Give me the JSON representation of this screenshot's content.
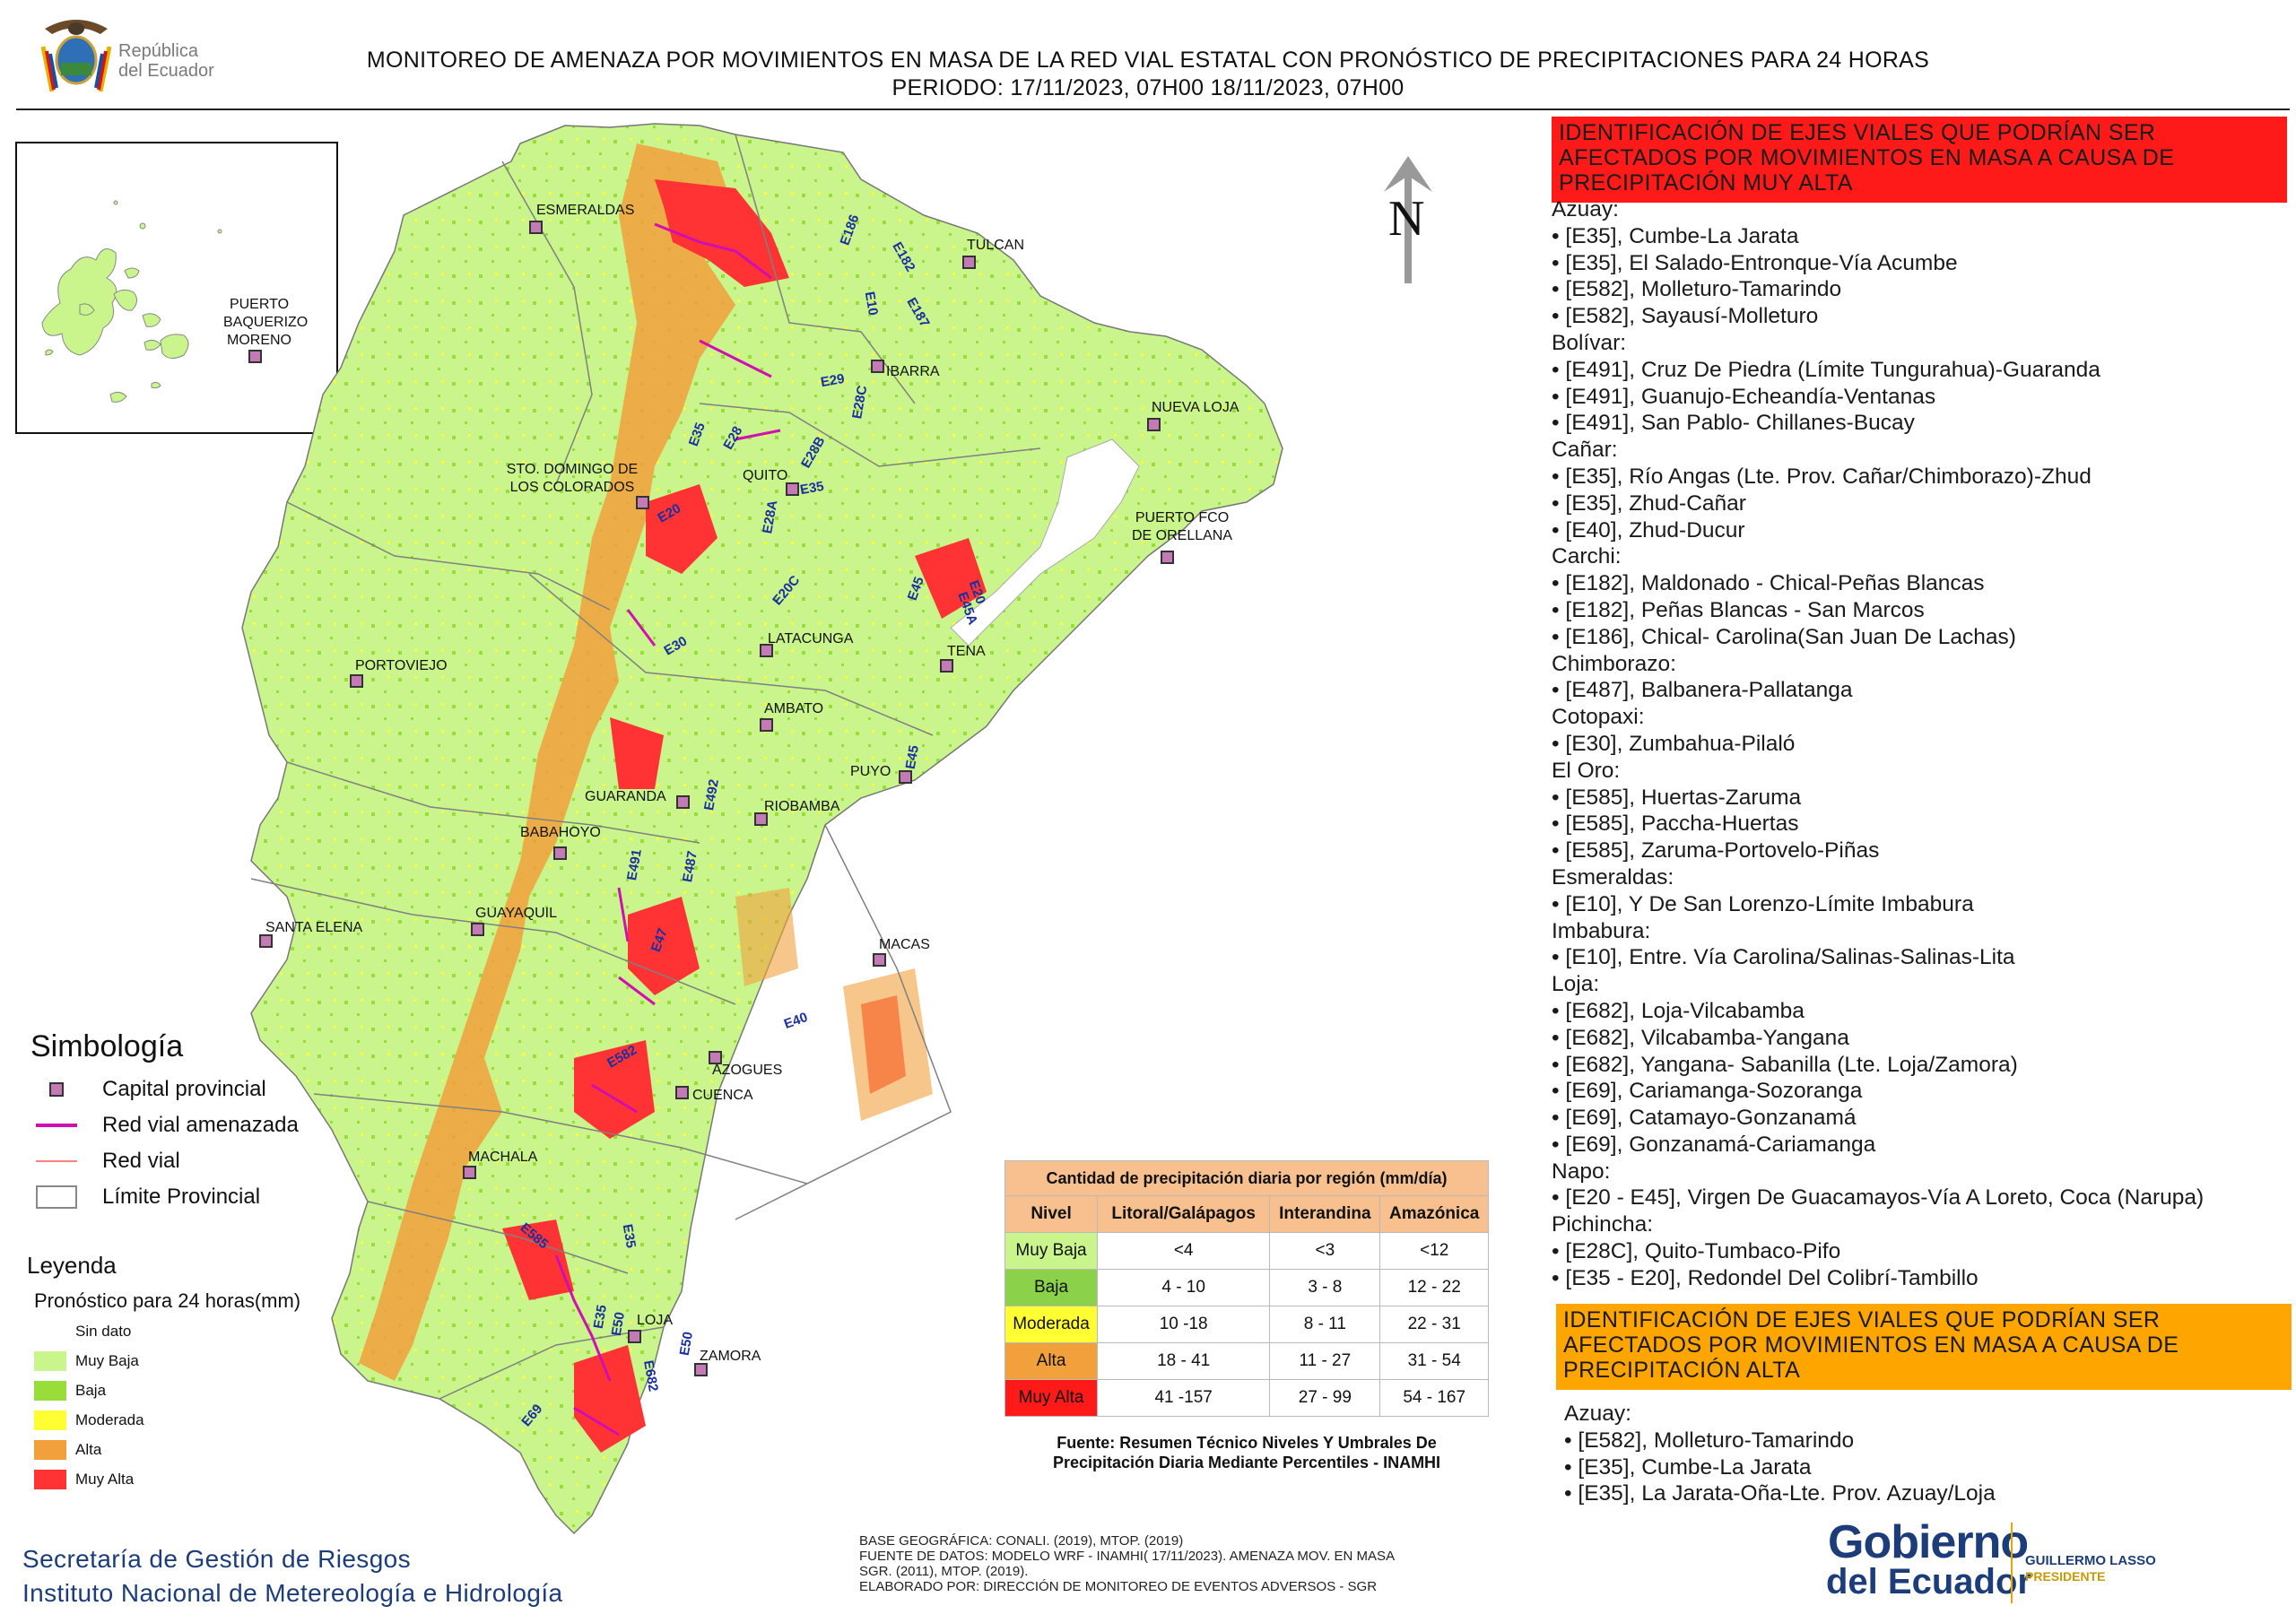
{
  "header": {
    "title_line1": "MONITOREO DE AMENAZA POR MOVIMIENTOS EN MASA DE LA RED VIAL  ESTATAL  CON PRONÓSTICO  DE  PRECIPITACIONES PARA 24 HORAS",
    "title_line2": "PERIODO: 17/11/2023, 07H00 18/11/2023, 07H00",
    "logo_text_line1": "República",
    "logo_text_line2": "del Ecuador"
  },
  "map": {
    "cities": [
      {
        "name": "ESMERALDAS",
        "label": "ESMERALDAS"
      },
      {
        "name": "TULCAN",
        "label": "TULCAN"
      },
      {
        "name": "IBARRA",
        "label": "IBARRA"
      },
      {
        "name": "NUEVA LOJA",
        "label": "NUEVA LOJA"
      },
      {
        "name": "STO. DOMINGO DE LOS COLORADOS",
        "label": "STO. DOMINGO DE LOS COLORADOS"
      },
      {
        "name": "QUITO",
        "label": "QUITO"
      },
      {
        "name": "PUERTO FCO DE ORELLANA",
        "label": "PUERTO FCO DE ORELLANA"
      },
      {
        "name": "LATACUNGA",
        "label": "LATACUNGA"
      },
      {
        "name": "TENA",
        "label": "TENA"
      },
      {
        "name": "PORTOVIEJO",
        "label": "PORTOVIEJO"
      },
      {
        "name": "AMBATO",
        "label": "AMBATO"
      },
      {
        "name": "PUYO",
        "label": "PUYO"
      },
      {
        "name": "GUARANDA",
        "label": "GUARANDA"
      },
      {
        "name": "RIOBAMBA",
        "label": "RIOBAMBA"
      },
      {
        "name": "BABAHOYO",
        "label": "BABAHOYO"
      },
      {
        "name": "SANTA ELENA",
        "label": "SANTA ELENA"
      },
      {
        "name": "GUAYAQUIL",
        "label": "GUAYAQUIL"
      },
      {
        "name": "MACAS",
        "label": "MACAS"
      },
      {
        "name": "AZOGUES",
        "label": "AZOGUES"
      },
      {
        "name": "CUENCA",
        "label": "CUENCA"
      },
      {
        "name": "MACHALA",
        "label": "MACHALA"
      },
      {
        "name": "LOJA",
        "label": "LOJA"
      },
      {
        "name": "ZAMORA",
        "label": "ZAMORA"
      },
      {
        "name": "PUERTO BAQUERIZO MORENO",
        "label": "PUERTO BAQUERIZO MORENO"
      }
    ],
    "road_labels": [
      "E186",
      "E182",
      "E10",
      "E187",
      "E29",
      "E35",
      "E28",
      "E28B",
      "E28C",
      "E35",
      "E20",
      "E28A",
      "E20C",
      "E45",
      "E20",
      "E45A",
      "E30",
      "E45",
      "E492",
      "E491",
      "E487",
      "E47",
      "E40",
      "E582",
      "E35",
      "E35",
      "E50",
      "E585",
      "E69",
      "E682",
      "E50"
    ],
    "north_label": "N",
    "colors": {
      "muy_baja": "#c9f58c",
      "baja": "#99dd3a",
      "moderada": "#ffff33",
      "alta": "#f2a03c",
      "muy_alta": "#ff3333",
      "sin_dato": "#ffffff",
      "road_threatened": "#d10fb0",
      "road": "#ff8080"
    }
  },
  "simbologia": {
    "title": "Simbología",
    "items": [
      "Capital provincial",
      "Red vial amenazada",
      "Red vial",
      "Límite Provincial"
    ]
  },
  "leyenda": {
    "title": "Leyenda",
    "subtitle": "Pronóstico para 24 horas(mm)",
    "items": [
      "Sin dato",
      "Muy Baja",
      "Baja",
      "Moderada",
      "Alta",
      "Muy Alta"
    ]
  },
  "precip_table": {
    "title": "Cantidad de precipitación diaria por región (mm/día)",
    "headers": [
      "Nivel",
      "Litoral/Galápagos",
      "Interandina",
      "Amazónica"
    ],
    "rows": [
      {
        "nivel": "Muy Baja",
        "litoral": "<4",
        "interandina": "<3",
        "amazonica": "<12"
      },
      {
        "nivel": "Baja",
        "litoral": "4 - 10",
        "interandina": "3 - 8",
        "amazonica": "12 - 22"
      },
      {
        "nivel": "Moderada",
        "litoral": "10 -18",
        "interandina": "8 - 11",
        "amazonica": "22 - 31"
      },
      {
        "nivel": "Alta",
        "litoral": "18 - 41",
        "interandina": "11 - 27",
        "amazonica": "31 - 54"
      },
      {
        "nivel": "Muy Alta",
        "litoral": "41 -157",
        "interandina": "27 - 99",
        "amazonica": "54 - 167"
      }
    ],
    "caption_line1": "Fuente: Resumen Técnico Niveles Y Umbrales De",
    "caption_line2": "Precipitación Diaria Mediante Percentiles - INAMHI"
  },
  "alerts": {
    "muy_alta_header": "IDENTIFICACIÓN DE EJES VIALES QUE PODRÍAN SER AFECTADOS POR MOVIMIENTOS EN MASA A CAUSA DE PRECIPITACIÓN MUY ALTA",
    "muy_alta_list": [
      "Azuay:",
      "• [E35], Cumbe-La Jarata",
      "• [E35], El Salado-Entronque-Vía Acumbe",
      "• [E582], Molleturo-Tamarindo",
      "• [E582], Sayausí-Molleturo",
      "Bolívar:",
      "• [E491], Cruz De Piedra (Límite Tungurahua)-Guaranda",
      "• [E491], Guanujo-Echeandía-Ventanas",
      "• [E491], San Pablo- Chillanes-Bucay",
      "Cañar:",
      "• [E35], Río Angas (Lte. Prov. Cañar/Chimborazo)-Zhud",
      "• [E35], Zhud-Cañar",
      "• [E40], Zhud-Ducur",
      "Carchi:",
      "• [E182], Maldonado - Chical-Peñas Blancas",
      "• [E182], Peñas Blancas - San Marcos",
      "• [E186], Chical- Carolina(San Juan De Lachas)",
      "Chimborazo:",
      "• [E487], Balbanera-Pallatanga",
      "Cotopaxi:",
      "• [E30], Zumbahua-Pilaló",
      "El Oro:",
      "• [E585], Huertas-Zaruma",
      "• [E585], Paccha-Huertas",
      "• [E585], Zaruma-Portovelo-Piñas",
      "Esmeraldas:",
      "• [E10], Y De San Lorenzo-Límite Imbabura",
      "Imbabura:",
      "• [E10], Entre. Vía Carolina/Salinas-Salinas-Lita",
      "Loja:",
      "• [E682], Loja-Vilcabamba",
      "• [E682], Vilcabamba-Yangana",
      "• [E682], Yangana- Sabanilla (Lte. Loja/Zamora)",
      "• [E69], Cariamanga-Sozoranga",
      "• [E69], Catamayo-Gonzanamá",
      "• [E69], Gonzanamá-Cariamanga",
      "Napo:",
      "• [E20 - E45], Virgen De Guacamayos-Vía A Loreto, Coca (Narupa)",
      "Pichincha:",
      "• [E28C], Quito-Tumbaco-Pifo",
      "• [E35 - E20], Redondel Del Colibrí-Tambillo"
    ],
    "alta_header": "IDENTIFICACIÓN DE EJES VIALES QUE PODRÍAN SER AFECTADOS POR MOVIMIENTOS EN MASA A CAUSA DE PRECIPITACIÓN  ALTA",
    "alta_list": [
      "Azuay:",
      "• [E582], Molleturo-Tamarindo",
      "• [E35], Cumbe-La Jarata",
      "• [E35], La Jarata-Oña-Lte. Prov. Azuay/Loja"
    ]
  },
  "footer": {
    "org_line1": "Secretaría de Gestión de Riesgos",
    "org_line2": "Instituto Nacional de Metereología e Hidrología",
    "source_line1": "BASE GEOGRÁFICA: CONALI. (2019), MTOP. (2019)",
    "source_line2": "FUENTE DE DATOS: MODELO WRF - INAMHI( 17/11/2023).  AMENAZA MOV. EN MASA",
    "source_line3": "SGR. (2011), MTOP. (2019).",
    "source_line4": "ELABORADO POR: DIRECCIÓN DE MONITOREO DE EVENTOS ADVERSOS - SGR",
    "gob_line1": "Gobierno",
    "gob_line2": "del Ecuador",
    "president_name": "GUILLERMO LASSO",
    "president_title": "PRESIDENTE"
  }
}
